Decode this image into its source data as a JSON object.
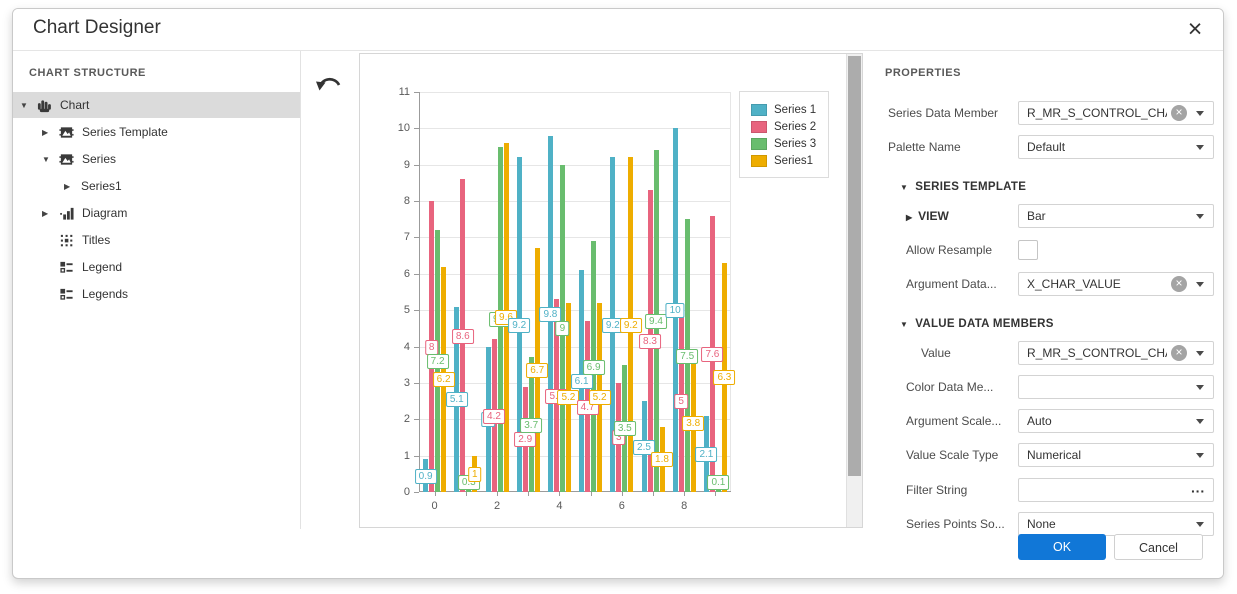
{
  "window": {
    "title": "Chart Designer",
    "close_icon": "×"
  },
  "chart_structure": {
    "header": "CHART STRUCTURE",
    "items": [
      {
        "label": "Chart",
        "level": 0,
        "expand": "open",
        "icon": "chart-icon",
        "selected": true
      },
      {
        "label": "Series Template",
        "level": 1,
        "expand": "closed",
        "icon": "series-icon",
        "selected": false
      },
      {
        "label": "Series",
        "level": 1,
        "expand": "open",
        "icon": "series-icon",
        "selected": false
      },
      {
        "label": "Series1",
        "level": 2,
        "expand": "closed",
        "icon": "",
        "selected": false
      },
      {
        "label": "Diagram",
        "level": 1,
        "expand": "closed",
        "icon": "diagram-icon",
        "selected": false
      },
      {
        "label": "Titles",
        "level": 1,
        "expand": "none",
        "icon": "titles-icon",
        "selected": false
      },
      {
        "label": "Legend",
        "level": 1,
        "expand": "none",
        "icon": "legend-icon",
        "selected": false
      },
      {
        "label": "Legends",
        "level": 1,
        "expand": "none",
        "icon": "legend-icon",
        "selected": false
      }
    ]
  },
  "toolbar": {
    "icons": [
      "undo-icon",
      "redo-icon"
    ],
    "undo_enabled_color": "#333333",
    "redo_disabled_color": "#c9c9c9"
  },
  "chart_data": {
    "type": "bar",
    "categories": [
      0,
      1,
      2,
      3,
      4,
      5,
      6,
      7,
      8,
      9
    ],
    "series": [
      {
        "name": "Series 1",
        "color": "#4FB1C6",
        "values": [
          0.9,
          5.1,
          4,
          9.2,
          9.8,
          6.1,
          9.2,
          2.5,
          10,
          2.1
        ]
      },
      {
        "name": "Series 2",
        "color": "#E8647E",
        "values": [
          8,
          8.6,
          4.2,
          2.9,
          5.3,
          4.7,
          3,
          8.3,
          5,
          7.6
        ]
      },
      {
        "name": "Series 3",
        "color": "#69BD6E",
        "values": [
          7.2,
          0.3,
          9.5,
          3.7,
          9,
          6.9,
          3.5,
          9.4,
          7.5,
          0.1
        ]
      },
      {
        "name": "Series1",
        "color": "#EEAD00",
        "values": [
          6.2,
          1,
          9.6,
          6.7,
          5.2,
          5.2,
          9.2,
          1.8,
          3.8,
          6.3
        ]
      }
    ],
    "ylim": [
      0,
      11
    ],
    "y_tick_step": 1,
    "x_major_tick_labels": [
      "0",
      "2",
      "4",
      "6",
      "8"
    ],
    "grid": "horizontal",
    "legend_position": "top-right",
    "data_labels": "value shown centered inside each bar"
  },
  "properties": {
    "header": "PROPERTIES",
    "rows": [
      {
        "type": "field",
        "label": "Series Data Member",
        "value": "R_MR_S_CONTROL_CHART_LI...",
        "clear": true,
        "caret": true,
        "indent": 0
      },
      {
        "type": "field",
        "label": "Palette Name",
        "value": "Default",
        "clear": false,
        "caret": true,
        "indent": 0
      },
      {
        "type": "section",
        "label": "SERIES TEMPLATE",
        "arrow": "open"
      },
      {
        "type": "field",
        "label": "VIEW",
        "value": "Bar",
        "clear": false,
        "caret": true,
        "indent": 1,
        "bold": true,
        "label_arrow": "closed"
      },
      {
        "type": "checkbox",
        "label": "Allow Resample",
        "checked": false,
        "indent": 1
      },
      {
        "type": "field",
        "label": "Argument Data...",
        "value": "X_CHAR_VALUE",
        "clear": true,
        "caret": true,
        "indent": 1
      },
      {
        "type": "section",
        "label": "VALUE DATA MEMBERS",
        "arrow": "open"
      },
      {
        "type": "field",
        "label": "Value",
        "value": "R_MR_S_CONTROL_CHART_LI...",
        "clear": true,
        "caret": true,
        "indent": 2
      },
      {
        "type": "field",
        "label": "Color Data Me...",
        "value": "",
        "clear": false,
        "caret": true,
        "indent": 1
      },
      {
        "type": "field",
        "label": "Argument Scale...",
        "value": "Auto",
        "clear": false,
        "caret": true,
        "indent": 1
      },
      {
        "type": "field",
        "label": "Value Scale Type",
        "value": "Numerical",
        "clear": false,
        "caret": true,
        "indent": 1
      },
      {
        "type": "field",
        "label": "Filter String",
        "value": "",
        "clear": false,
        "caret": false,
        "indent": 1,
        "ellipsis": true
      },
      {
        "type": "field",
        "label": "Series Points So...",
        "value": "None",
        "clear": false,
        "caret": true,
        "indent": 1
      }
    ],
    "ok_label": "OK",
    "cancel_label": "Cancel",
    "accent_color": "#1177D7"
  }
}
